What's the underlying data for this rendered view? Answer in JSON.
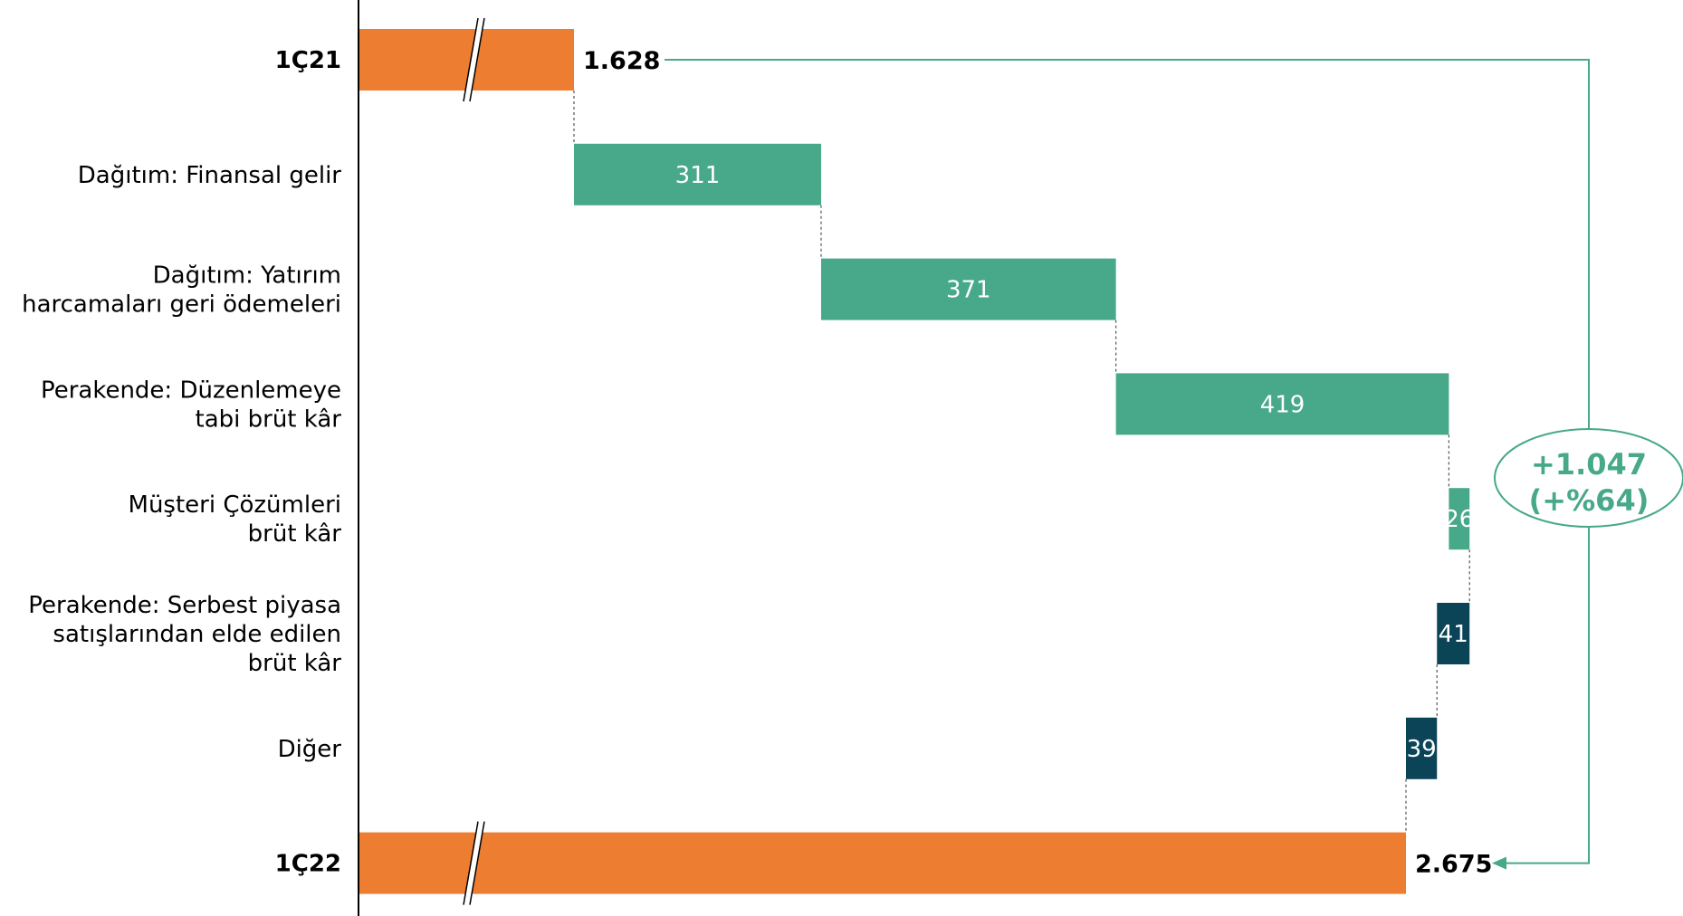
{
  "chart_data": {
    "type": "waterfall",
    "title": "",
    "xlabel": "",
    "ylabel": "",
    "axis_break": true,
    "colors": {
      "total": "#ED7D31",
      "increase": "#47A88A",
      "decrease": "#0B4357",
      "bracket": "#47A88A",
      "axis": "#000000",
      "connector": "#555555"
    },
    "categories": [
      {
        "label": "1Ç21",
        "lines": [
          "1Ç21"
        ],
        "value": 1628,
        "display": "1.628",
        "kind": "total"
      },
      {
        "label": "Dağıtım: Finansal gelir",
        "lines": [
          "Dağıtım: Finansal gelir"
        ],
        "value": 311,
        "display": "311",
        "kind": "increase"
      },
      {
        "label": "Dağıtım: Yatırım harcamaları geri ödemeleri",
        "lines": [
          "Dağıtım: Yatırım",
          "harcamaları geri ödemeleri"
        ],
        "value": 371,
        "display": "371",
        "kind": "increase"
      },
      {
        "label": "Perakende: Düzenlemeye tabi brüt kâr",
        "lines": [
          "Perakende: Düzenlemeye",
          "tabi brüt kâr"
        ],
        "value": 419,
        "display": "419",
        "kind": "increase"
      },
      {
        "label": "Müşteri Çözümleri brüt kâr",
        "lines": [
          "Müşteri Çözümleri",
          "brüt kâr"
        ],
        "value": 26,
        "display": "26",
        "kind": "increase"
      },
      {
        "label": "Perakende: Serbest piyasa satışlarından elde edilen brüt kâr",
        "lines": [
          "Perakende: Serbest piyasa",
          "satışlarından elde edilen",
          "brüt kâr"
        ],
        "value": -41,
        "display": "41",
        "kind": "decrease"
      },
      {
        "label": "Diğer",
        "lines": [
          "Diğer"
        ],
        "value": -39,
        "display": "39",
        "kind": "decrease"
      },
      {
        "label": "1Ç22",
        "lines": [
          "1Ç22"
        ],
        "value": 2675,
        "display": "2.675",
        "kind": "total"
      }
    ],
    "change": {
      "line1": "+1.047",
      "line2": "(+%64)"
    }
  }
}
